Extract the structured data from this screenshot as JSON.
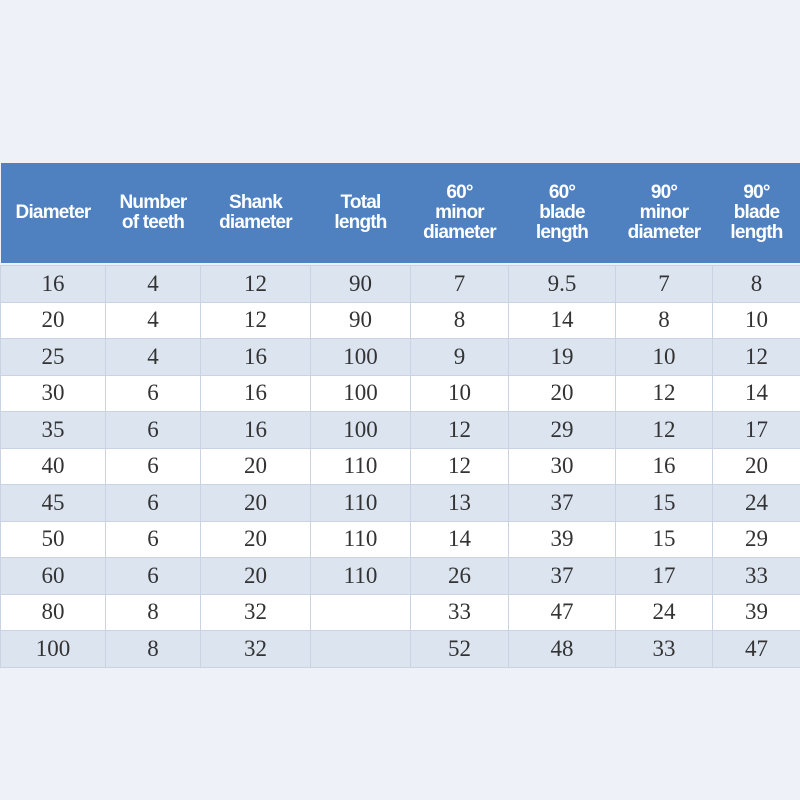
{
  "table": {
    "headers": [
      [
        "Diameter"
      ],
      [
        "Number",
        "of teeth"
      ],
      [
        "Shank",
        "diameter"
      ],
      [
        "Total",
        "length"
      ],
      [
        "60°",
        "minor",
        "diameter"
      ],
      [
        "60°",
        "blade",
        "length"
      ],
      [
        "90°",
        "minor",
        "diameter"
      ],
      [
        "90°",
        "blade",
        "length"
      ]
    ],
    "rows": [
      [
        16,
        4,
        12,
        90,
        7,
        9.5,
        7,
        8
      ],
      [
        20,
        4,
        12,
        90,
        8,
        14,
        8,
        10
      ],
      [
        25,
        4,
        16,
        100,
        9,
        19,
        10,
        12
      ],
      [
        30,
        6,
        16,
        100,
        10,
        20,
        12,
        14
      ],
      [
        35,
        6,
        16,
        100,
        12,
        29,
        12,
        17
      ],
      [
        40,
        6,
        20,
        110,
        12,
        30,
        16,
        20
      ],
      [
        45,
        6,
        20,
        110,
        13,
        37,
        15,
        24
      ],
      [
        50,
        6,
        20,
        110,
        14,
        39,
        15,
        29
      ],
      [
        60,
        6,
        20,
        110,
        26,
        37,
        17,
        33
      ],
      [
        80,
        8,
        32,
        null,
        33,
        47,
        24,
        39
      ],
      [
        100,
        8,
        32,
        null,
        52,
        48,
        33,
        47
      ]
    ]
  }
}
